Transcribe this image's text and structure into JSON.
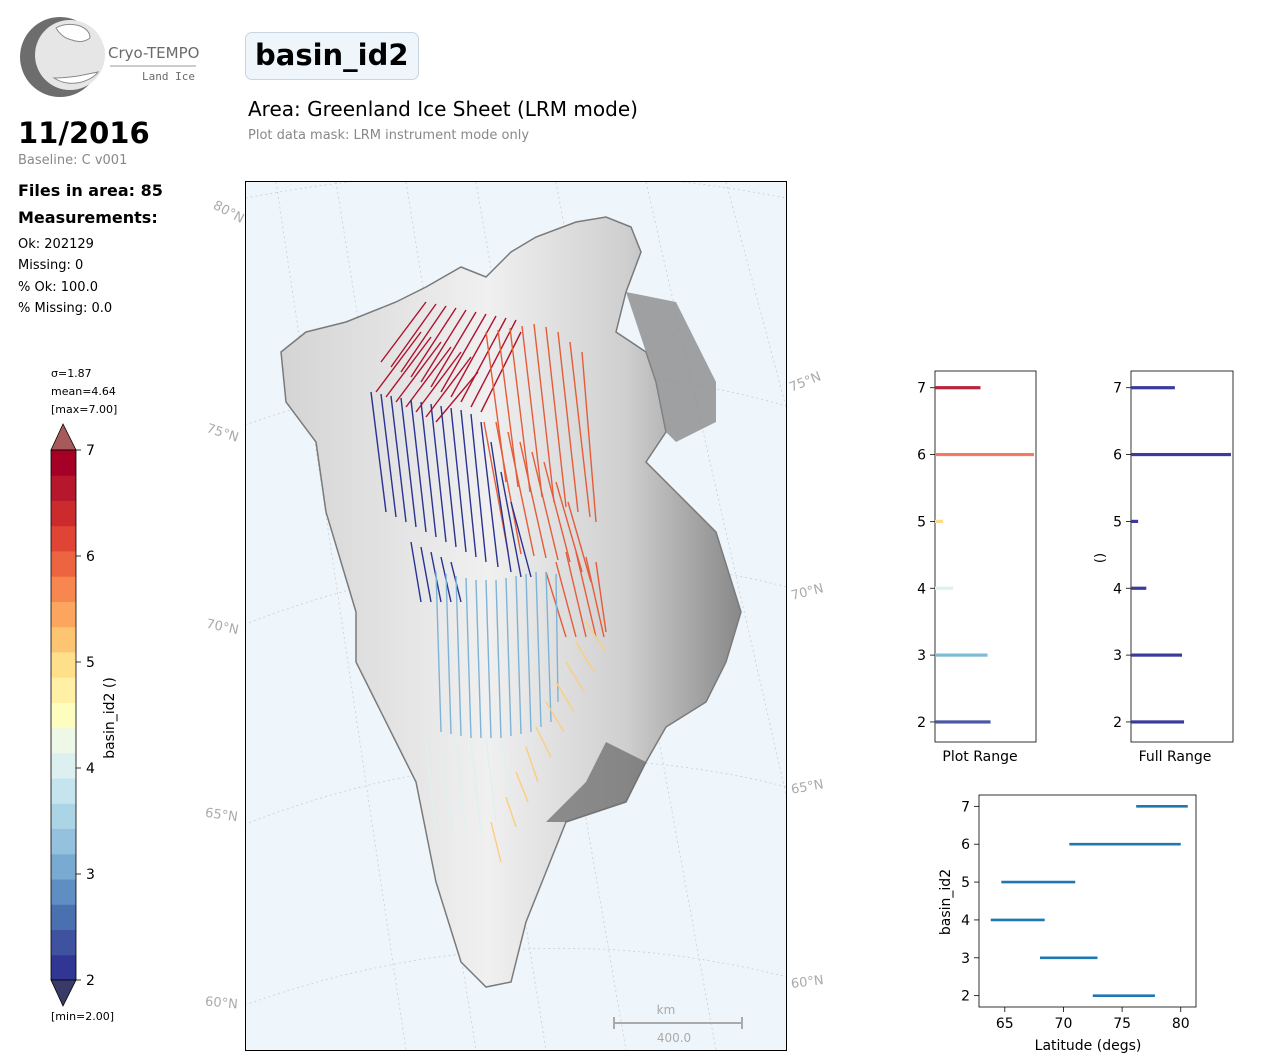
{
  "logo": {
    "line1": "Cryo-TEMPO",
    "line2": "Land Ice"
  },
  "header": {
    "period": "11/2016",
    "baseline": "Baseline: C v001",
    "files": "Files in area: 85",
    "measurements_title": "Measurements:",
    "stats": [
      "Ok: 202129",
      "Missing: 0",
      "% Ok: 100.0",
      "% Missing: 0.0"
    ]
  },
  "title": {
    "variable": "basin_id2",
    "area": "Area: Greenland Ice Sheet (LRM mode)",
    "mask": "Plot data mask: LRM instrument mode only"
  },
  "map": {
    "lat_labels_left": [
      "80°N",
      "75°N",
      "70°N",
      "65°N",
      "60°N"
    ],
    "lat_labels_right": [
      "75°N",
      "70°N",
      "65°N",
      "60°N"
    ],
    "scale_unit": "km",
    "scale_value": "400.0"
  },
  "colorbar": {
    "sigma": "σ=1.87",
    "mean": "mean=4.64",
    "max": "[max=7.00]",
    "min": "[min=2.00]",
    "label": "basin_id2 ()",
    "ticks": [
      "7",
      "6",
      "5",
      "4",
      "3",
      "2"
    ],
    "colors": [
      "#313695",
      "#3e52a0",
      "#4a70b0",
      "#5f8fc2",
      "#78aad2",
      "#93c1de",
      "#acd4e7",
      "#c5e4ee",
      "#dcf0f2",
      "#eef8e6",
      "#fefdc0",
      "#fff0a5",
      "#fee08b",
      "#fdc472",
      "#fca55e",
      "#f78650",
      "#ed6440",
      "#e04434",
      "#cb2b2c",
      "#b6172c",
      "#a50026"
    ]
  },
  "chart_data": [
    {
      "type": "bar",
      "title": "",
      "xlabel": "Plot Range",
      "ylabel": "",
      "categories": [
        "2",
        "3",
        "4",
        "5",
        "6",
        "7"
      ],
      "values": [
        0.55,
        0.52,
        0.18,
        0.08,
        0.98,
        0.45
      ],
      "colors": [
        "#4a57a6",
        "#7fbad6",
        "#dff0f0",
        "#fddb8a",
        "#ee7c62",
        "#b7253a"
      ],
      "ylim": [
        1.7,
        7.25
      ],
      "yticks": [
        "2",
        "3",
        "4",
        "5",
        "6",
        "7"
      ]
    },
    {
      "type": "bar",
      "title": "",
      "xlabel": "Full Range",
      "ylabel": "()",
      "categories": [
        "2",
        "3",
        "4",
        "5",
        "6",
        "7"
      ],
      "values": [
        0.52,
        0.5,
        0.15,
        0.07,
        0.98,
        0.43
      ],
      "colors": [
        "#3b3b9c",
        "#3b3b9c",
        "#3b3b9c",
        "#3b3b9c",
        "#3b3b9c",
        "#3b3b9c"
      ],
      "ylim": [
        1.7,
        7.25
      ],
      "yticks": [
        "2",
        "3",
        "4",
        "5",
        "6",
        "7"
      ]
    },
    {
      "type": "line",
      "title": "",
      "xlabel": "Latitude (degs)",
      "ylabel": "basin_id2",
      "xlim": [
        62.8,
        81.3
      ],
      "ylim": [
        1.7,
        7.3
      ],
      "xticks": [
        "65",
        "70",
        "75",
        "80"
      ],
      "yticks": [
        "2",
        "3",
        "4",
        "5",
        "6",
        "7"
      ],
      "series": [
        {
          "x": [
            72.5,
            77.8
          ],
          "y": [
            2,
            2
          ]
        },
        {
          "x": [
            68.0,
            72.9
          ],
          "y": [
            3,
            3
          ]
        },
        {
          "x": [
            63.8,
            68.4
          ],
          "y": [
            4,
            4
          ]
        },
        {
          "x": [
            64.7,
            71.0
          ],
          "y": [
            5,
            5
          ]
        },
        {
          "x": [
            70.5,
            80.0
          ],
          "y": [
            6,
            6
          ]
        },
        {
          "x": [
            76.2,
            80.6
          ],
          "y": [
            7,
            7
          ]
        }
      ],
      "color": "#1f77b4"
    }
  ]
}
